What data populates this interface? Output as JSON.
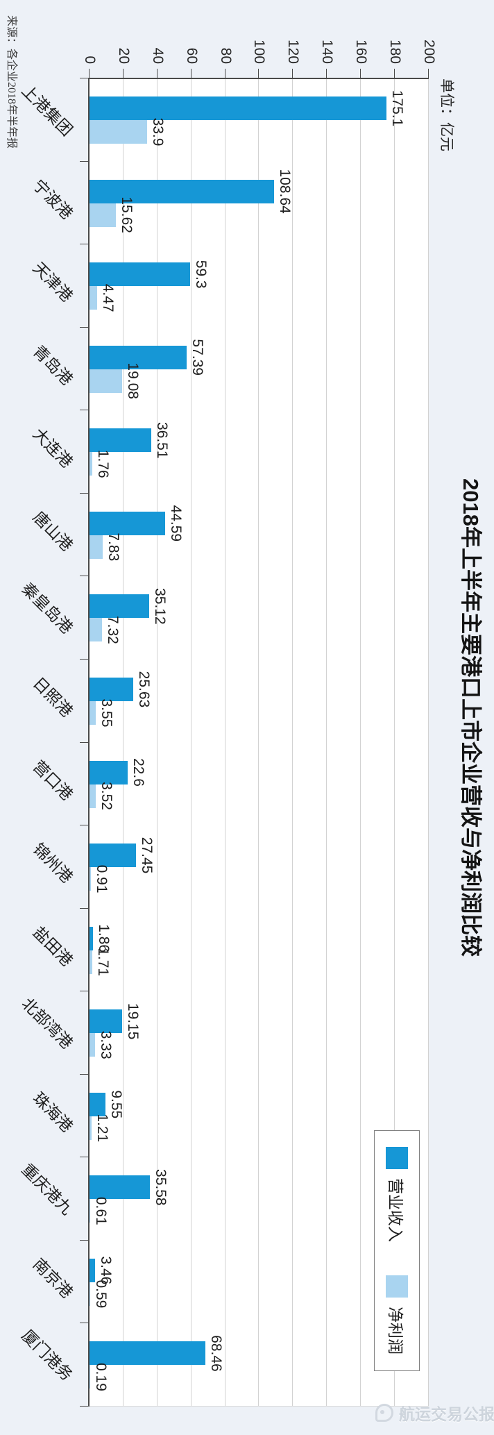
{
  "chart_data": {
    "type": "bar",
    "title": "2018年上半年主要港口上市企业营收与净利润比较",
    "unit_label": "单位：亿元",
    "source": "来源：各企业2018年半年报",
    "watermark": "航运交易公报",
    "rotation": "chart rotated 90deg clockwise in image",
    "categories": [
      "上港集团",
      "宁波港",
      "天津港",
      "青岛港",
      "大连港",
      "唐山港",
      "秦皇岛港",
      "日照港",
      "营口港",
      "锦州港",
      "盐田港",
      "北部湾港",
      "珠海港",
      "重庆港九",
      "南京港",
      "厦门港务"
    ],
    "series": [
      {
        "name": "营业收入",
        "color": "#1697D6",
        "values": [
          175.1,
          108.64,
          59.3,
          57.39,
          36.51,
          44.59,
          35.12,
          25.63,
          22.6,
          27.45,
          1.86,
          19.15,
          9.55,
          35.58,
          3.46,
          68.46
        ]
      },
      {
        "name": "净利润",
        "color": "#A9D4F0",
        "values": [
          33.9,
          15.62,
          4.47,
          19.08,
          1.76,
          7.83,
          7.32,
          3.55,
          3.52,
          0.91,
          1.71,
          3.33,
          1.21,
          0.61,
          0.59,
          0.19
        ]
      }
    ],
    "value_axis": {
      "min": 0,
      "max": 200,
      "step": 20
    },
    "legend_position": "top-right inside chart",
    "grid": true,
    "colors": {
      "background": "#edf1f7",
      "plot_background": "#ffffff",
      "gridline": "#d2d2d2",
      "axis": "#4a4a4a",
      "text": "#1f1f1f",
      "watermark": "#cdd4dc"
    }
  }
}
